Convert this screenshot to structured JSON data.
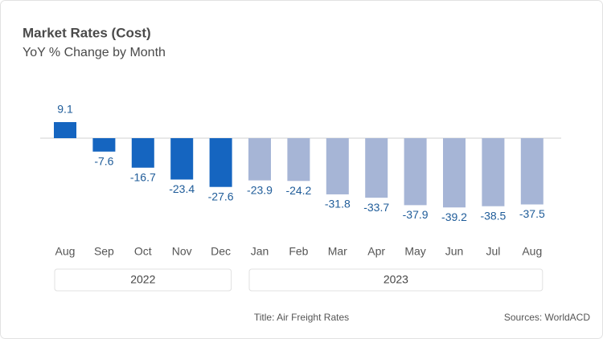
{
  "chart_data": {
    "type": "bar",
    "title": "Market Rates (Cost)",
    "subtitle": "YoY % Change by Month",
    "categories": [
      "Aug",
      "Sep",
      "Oct",
      "Nov",
      "Dec",
      "Jan",
      "Feb",
      "Mar",
      "Apr",
      "May",
      "Jun",
      "Jul",
      "Aug"
    ],
    "series": [
      {
        "name": "2022",
        "color": "#1565c0",
        "values": [
          9.1,
          -7.6,
          -16.7,
          -23.4,
          -27.6,
          null,
          null,
          null,
          null,
          null,
          null,
          null,
          null
        ]
      },
      {
        "name": "2023",
        "color": "#a6b5d6",
        "values": [
          null,
          null,
          null,
          null,
          null,
          -23.9,
          -24.2,
          -31.8,
          -33.7,
          -37.9,
          -39.2,
          -38.5,
          -37.5
        ]
      }
    ],
    "footer_note": "Title: Air Freight Rates",
    "source": "Sources: WorldACD"
  }
}
